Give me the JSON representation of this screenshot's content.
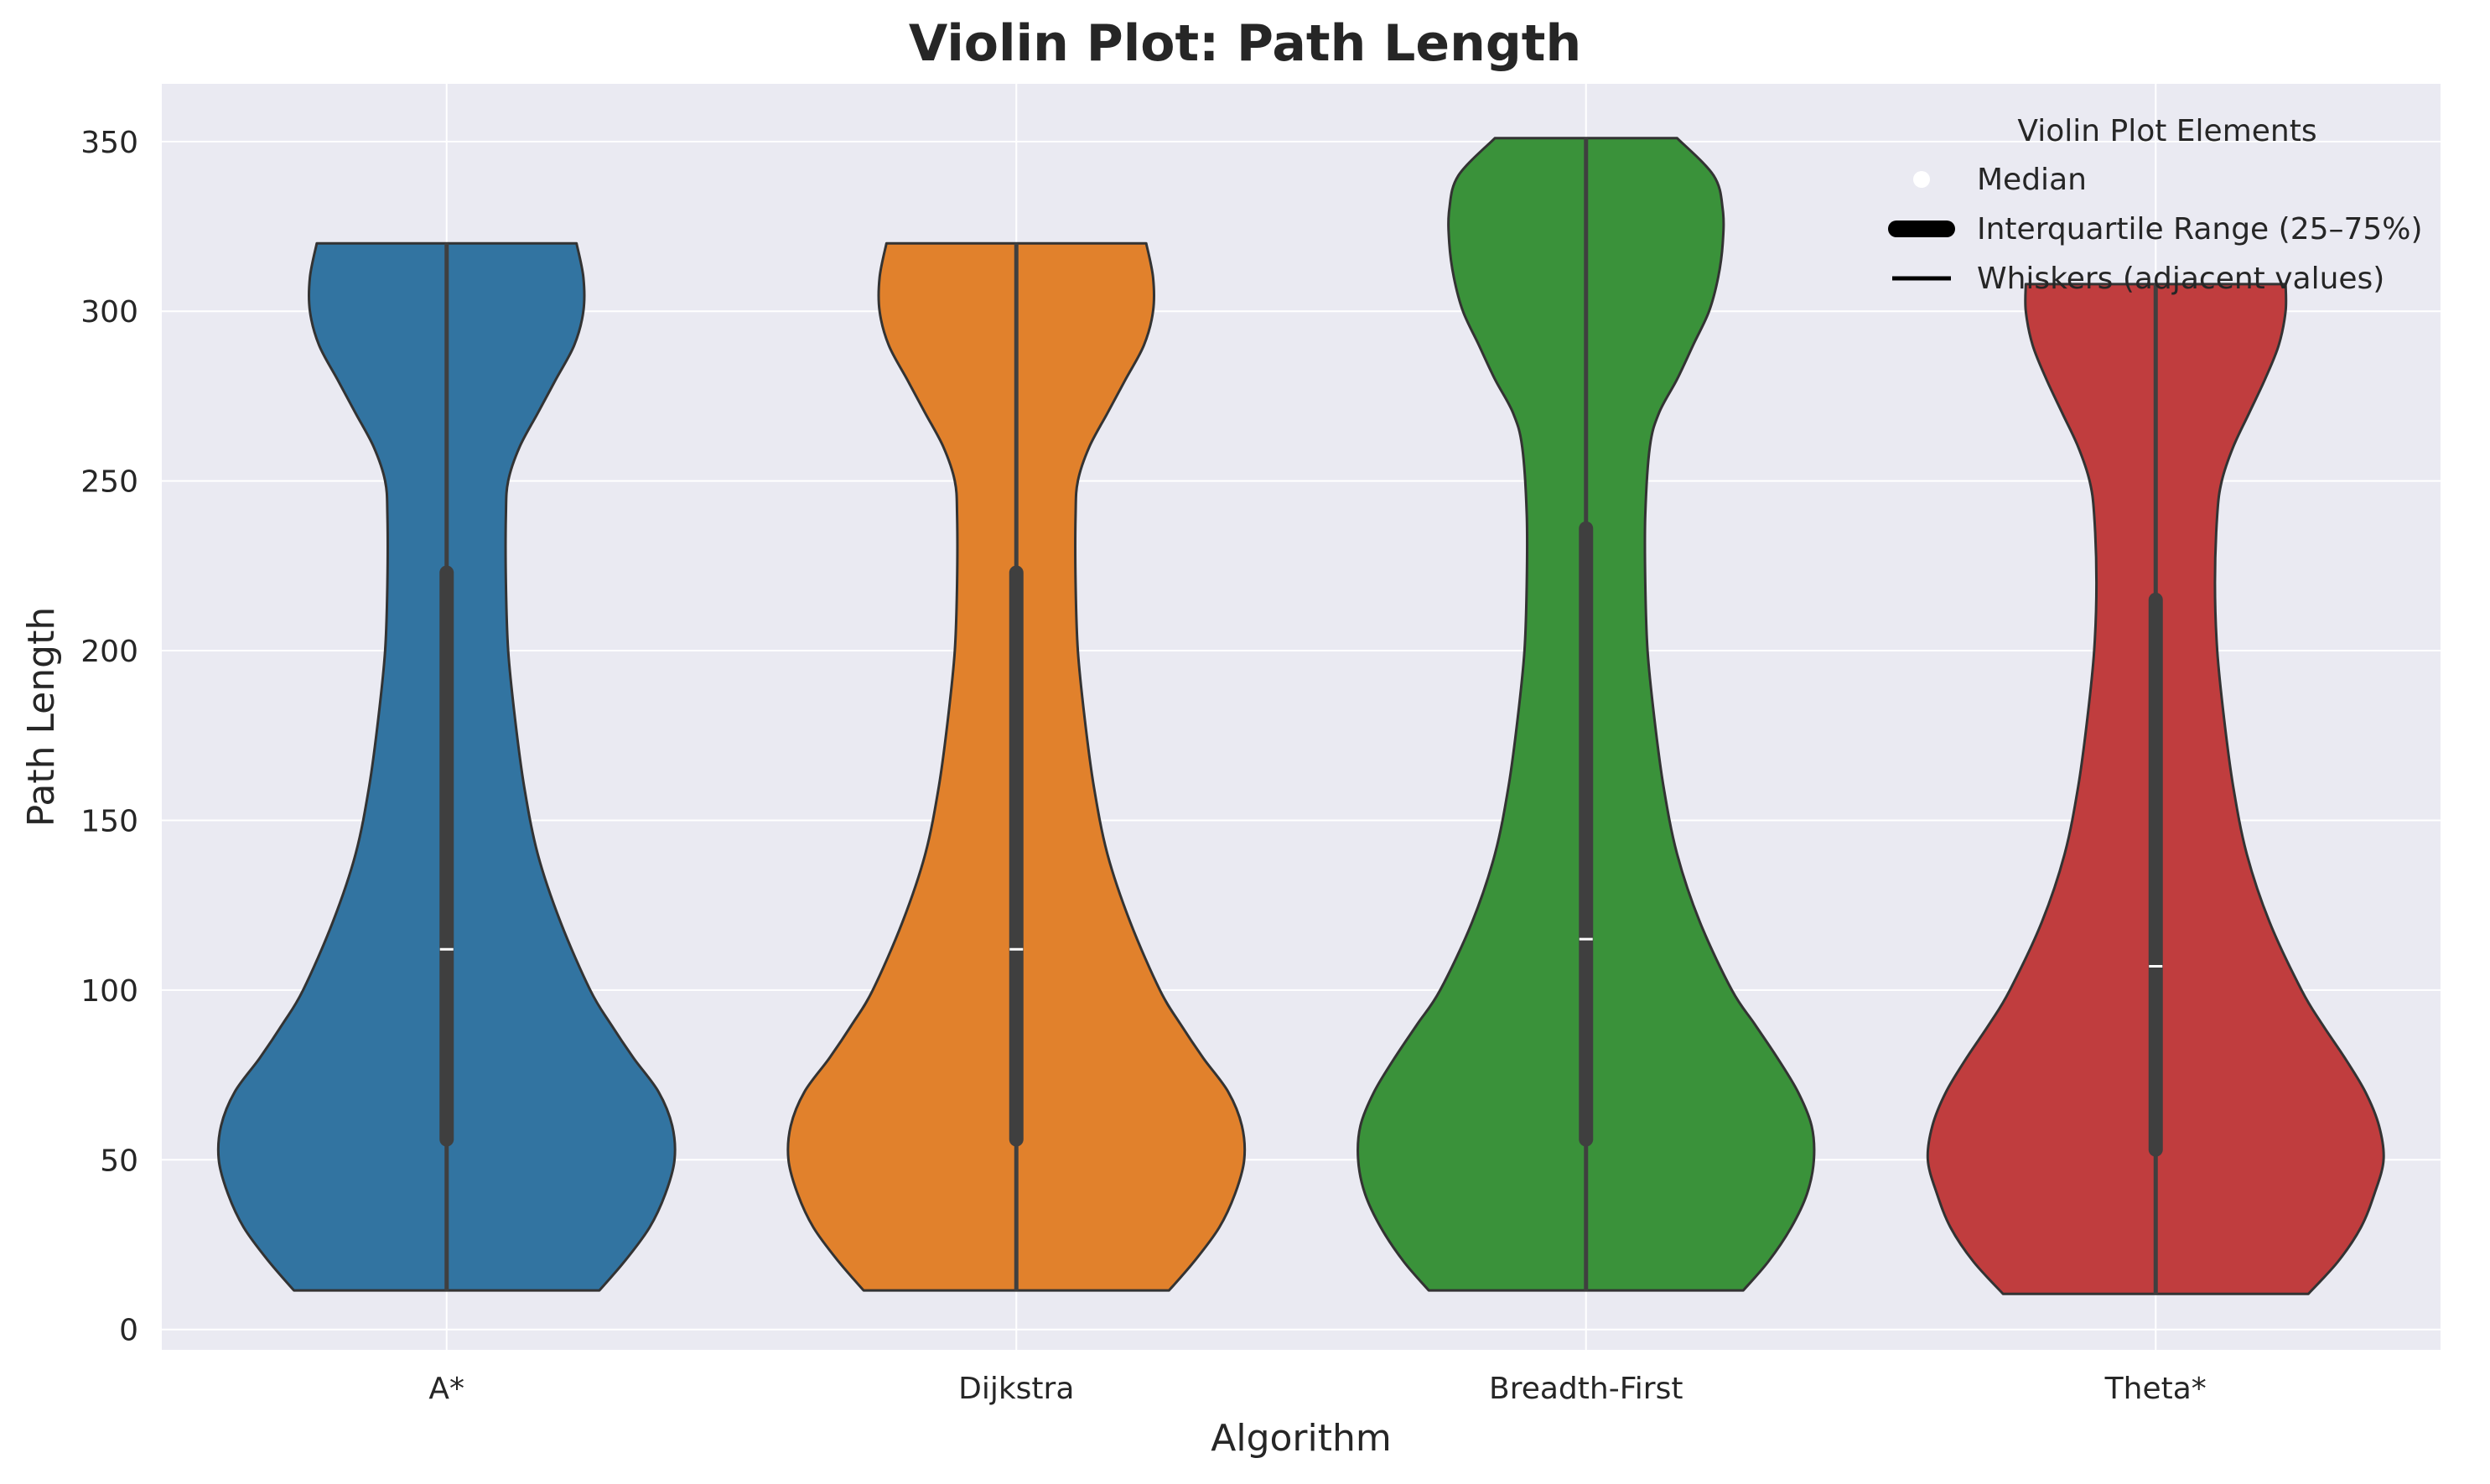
{
  "chart_data": {
    "type": "violin",
    "title": "Violin Plot: Path Length",
    "xlabel": "Algorithm",
    "ylabel": "Path Length",
    "ylim": [
      -6,
      367
    ],
    "yticks": [
      0,
      50,
      100,
      150,
      200,
      250,
      300,
      350
    ],
    "grid": true,
    "background": "#eaeaf2",
    "categories": [
      "A*",
      "Dijkstra",
      "Breadth-First",
      "Theta*"
    ],
    "series": [
      {
        "category": "A*",
        "color": "#3274a1",
        "min": 11.5,
        "q1": 56,
        "median": 112,
        "q3": 223,
        "max": 320,
        "density": [
          [
            11.5,
            0.67
          ],
          [
            20,
            0.78
          ],
          [
            30,
            0.89
          ],
          [
            40,
            0.96
          ],
          [
            50,
            1.0
          ],
          [
            60,
            0.99
          ],
          [
            70,
            0.93
          ],
          [
            80,
            0.82
          ],
          [
            90,
            0.72
          ],
          [
            100,
            0.63
          ],
          [
            120,
            0.5
          ],
          [
            140,
            0.4
          ],
          [
            160,
            0.34
          ],
          [
            180,
            0.3
          ],
          [
            200,
            0.27
          ],
          [
            220,
            0.26
          ],
          [
            240,
            0.26
          ],
          [
            250,
            0.27
          ],
          [
            260,
            0.32
          ],
          [
            270,
            0.4
          ],
          [
            280,
            0.48
          ],
          [
            290,
            0.56
          ],
          [
            300,
            0.6
          ],
          [
            310,
            0.6
          ],
          [
            320,
            0.57
          ]
        ]
      },
      {
        "category": "Dijkstra",
        "color": "#e1812c",
        "min": 11.5,
        "q1": 56,
        "median": 112,
        "q3": 223,
        "max": 320,
        "density": [
          [
            11.5,
            0.67
          ],
          [
            20,
            0.78
          ],
          [
            30,
            0.89
          ],
          [
            40,
            0.96
          ],
          [
            50,
            1.0
          ],
          [
            60,
            0.99
          ],
          [
            70,
            0.93
          ],
          [
            80,
            0.82
          ],
          [
            90,
            0.72
          ],
          [
            100,
            0.63
          ],
          [
            120,
            0.5
          ],
          [
            140,
            0.4
          ],
          [
            160,
            0.34
          ],
          [
            180,
            0.3
          ],
          [
            200,
            0.27
          ],
          [
            220,
            0.26
          ],
          [
            240,
            0.26
          ],
          [
            250,
            0.27
          ],
          [
            260,
            0.32
          ],
          [
            270,
            0.4
          ],
          [
            280,
            0.48
          ],
          [
            290,
            0.56
          ],
          [
            300,
            0.6
          ],
          [
            310,
            0.6
          ],
          [
            320,
            0.57
          ]
        ]
      },
      {
        "category": "Breadth-First",
        "color": "#3a923a",
        "min": 11.5,
        "q1": 56,
        "median": 115,
        "q3": 236,
        "max": 351,
        "density": [
          [
            11.5,
            0.69
          ],
          [
            20,
            0.8
          ],
          [
            30,
            0.9
          ],
          [
            40,
            0.97
          ],
          [
            50,
            1.0
          ],
          [
            60,
            0.99
          ],
          [
            70,
            0.93
          ],
          [
            80,
            0.84
          ],
          [
            90,
            0.74
          ],
          [
            100,
            0.64
          ],
          [
            120,
            0.5
          ],
          [
            140,
            0.4
          ],
          [
            160,
            0.34
          ],
          [
            180,
            0.3
          ],
          [
            200,
            0.27
          ],
          [
            220,
            0.26
          ],
          [
            240,
            0.26
          ],
          [
            260,
            0.28
          ],
          [
            270,
            0.32
          ],
          [
            280,
            0.4
          ],
          [
            290,
            0.47
          ],
          [
            300,
            0.54
          ],
          [
            310,
            0.58
          ],
          [
            320,
            0.6
          ],
          [
            330,
            0.6
          ],
          [
            340,
            0.56
          ],
          [
            351,
            0.4
          ]
        ]
      },
      {
        "category": "Theta*",
        "color": "#c03d3e",
        "min": 10.5,
        "q1": 53,
        "median": 107,
        "q3": 215,
        "max": 308,
        "density": [
          [
            10.5,
            0.67
          ],
          [
            20,
            0.8
          ],
          [
            30,
            0.9
          ],
          [
            40,
            0.96
          ],
          [
            50,
            1.0
          ],
          [
            60,
            0.98
          ],
          [
            70,
            0.92
          ],
          [
            80,
            0.83
          ],
          [
            90,
            0.73
          ],
          [
            100,
            0.64
          ],
          [
            120,
            0.5
          ],
          [
            140,
            0.4
          ],
          [
            160,
            0.34
          ],
          [
            180,
            0.3
          ],
          [
            200,
            0.27
          ],
          [
            220,
            0.26
          ],
          [
            240,
            0.27
          ],
          [
            250,
            0.29
          ],
          [
            260,
            0.34
          ],
          [
            270,
            0.41
          ],
          [
            280,
            0.48
          ],
          [
            290,
            0.54
          ],
          [
            300,
            0.57
          ],
          [
            308,
            0.57
          ]
        ]
      }
    ],
    "legend": {
      "position": "top-right",
      "title": "Violin Plot Elements",
      "items": [
        {
          "label": "Median",
          "marker": "dot",
          "color": "#ffffff"
        },
        {
          "label": "Interquartile Range (25–75%)",
          "marker": "thick-line",
          "color": "#000000"
        },
        {
          "label": "Whiskers (adjacent values)",
          "marker": "thin-line",
          "color": "#000000"
        }
      ]
    }
  }
}
